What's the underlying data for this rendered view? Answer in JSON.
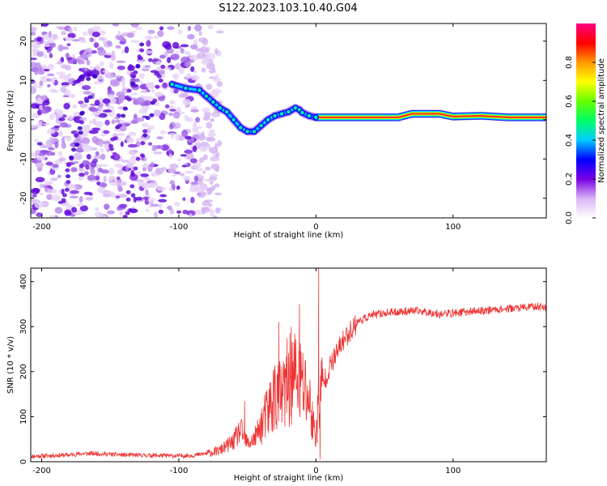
{
  "figure_title": "S122.2023.103.10.40.G04",
  "chart_data": [
    {
      "type": "heatmap",
      "title": "",
      "xlabel": "Height of straight line (km)",
      "ylabel": "Frequency (Hz)",
      "xlim": [
        -208,
        168
      ],
      "ylim": [
        -25,
        24.5
      ],
      "xticks": [
        -200,
        -100,
        0,
        100
      ],
      "yticks": [
        -20,
        -10,
        0,
        10,
        20
      ],
      "colorbar": {
        "label": "Normalized spectral amplitude",
        "range": [
          0,
          1
        ],
        "ticks": [
          0.0,
          0.2,
          0.4,
          0.6,
          0.8
        ],
        "tick_labels": [
          "0.0",
          "0.2",
          "0.4",
          "0.6",
          "0.8"
        ]
      },
      "ridge": {
        "x": [
          -105,
          -95,
          -85,
          -80,
          -75,
          -70,
          -65,
          -60,
          -55,
          -50,
          -45,
          -40,
          -35,
          -30,
          -25,
          -20,
          -15,
          -12,
          -10,
          -5,
          0,
          20,
          60,
          70,
          90,
          100,
          120,
          140,
          168
        ],
        "y": [
          9,
          8,
          7.5,
          6,
          4.5,
          3,
          2,
          0,
          -2,
          -3,
          -3,
          -1.5,
          0,
          1,
          1.5,
          2,
          3,
          2.5,
          1.8,
          1,
          0.6,
          0.6,
          0.6,
          1.5,
          1.5,
          0.8,
          1,
          0.6,
          0.6
        ]
      },
      "high_amplitude_from_x": 0,
      "low_amplitude_noise_below_x": -85,
      "colors": {
        "colormap": [
          "#ffffff",
          "#d8b4f5",
          "#7a00e6",
          "#0000ff",
          "#00ccff",
          "#00ff66",
          "#66ff00",
          "#ffff00",
          "#ff9900",
          "#ff0000",
          "#ff0080"
        ],
        "ridge_high": "#ff2222"
      }
    },
    {
      "type": "line",
      "title": "",
      "xlabel": "Height of straight line (km)",
      "ylabel": "SNR (10 * v/v)",
      "xlim": [
        -208,
        168
      ],
      "ylim": [
        0,
        430
      ],
      "xticks": [
        -200,
        -100,
        0,
        100
      ],
      "yticks": [
        0,
        100,
        200,
        300,
        400
      ],
      "series": [
        {
          "color": "#ee3333",
          "x": [
            -208,
            -180,
            -170,
            -160,
            -140,
            -120,
            -100,
            -90,
            -80,
            -70,
            -60,
            -55,
            -50,
            -45,
            -40,
            -35,
            -30,
            -25,
            -20,
            -15,
            -10,
            -5,
            -2,
            0,
            2,
            5,
            10,
            15,
            20,
            25,
            30,
            40,
            50,
            60,
            70,
            80,
            90,
            100,
            110,
            120,
            130,
            140,
            150,
            160,
            168
          ],
          "y": [
            12,
            15,
            18,
            18,
            15,
            14,
            13,
            14,
            18,
            25,
            45,
            70,
            40,
            50,
            80,
            110,
            150,
            140,
            180,
            190,
            170,
            140,
            80,
            60,
            130,
            170,
            210,
            240,
            270,
            290,
            310,
            325,
            330,
            333,
            335,
            333,
            328,
            330,
            333,
            335,
            338,
            340,
            342,
            345,
            343
          ]
        }
      ],
      "spikes": [
        {
          "x": -52,
          "y": 135
        },
        {
          "x": -27,
          "y": 310
        },
        {
          "x": -18,
          "y": 300
        },
        {
          "x": -12,
          "y": 350
        },
        {
          "x": 2,
          "y": 430
        },
        {
          "x": 3,
          "y": 5
        }
      ]
    }
  ]
}
